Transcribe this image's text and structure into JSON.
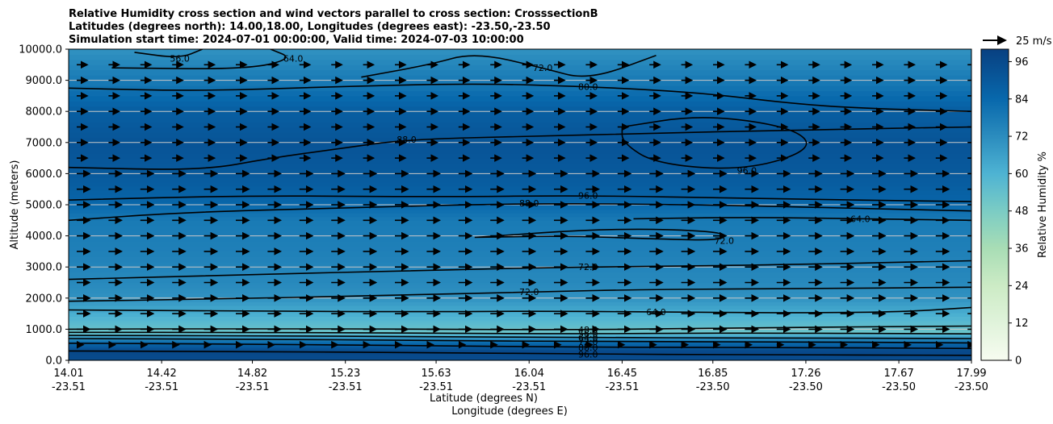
{
  "chart_data": {
    "type": "contourf",
    "title_lines": [
      "Relative Humidity cross section and wind vectors parallel to cross section: CrosssectionB",
      "Latitudes (degrees north): 14.00,18.00, Longitudes (degrees east): -23.50,-23.50",
      "Simulation start time: 2024-07-01 00:00:00, Valid time: 2024-07-03 10:00:00"
    ],
    "xlabel_line1": "Latitude (degrees N)",
    "xlabel_line2": "Longitude (degrees E)",
    "ylabel": "Altitude (meters)",
    "x_ticks": [
      {
        "lat": "14.01",
        "lon": "-23.51",
        "v": 14.01
      },
      {
        "lat": "14.42",
        "lon": "-23.51",
        "v": 14.42
      },
      {
        "lat": "14.82",
        "lon": "-23.51",
        "v": 14.82
      },
      {
        "lat": "15.23",
        "lon": "-23.51",
        "v": 15.23
      },
      {
        "lat": "15.63",
        "lon": "-23.51",
        "v": 15.63
      },
      {
        "lat": "16.04",
        "lon": "-23.51",
        "v": 16.04
      },
      {
        "lat": "16.45",
        "lon": "-23.51",
        "v": 16.45
      },
      {
        "lat": "16.85",
        "lon": "-23.50",
        "v": 16.85
      },
      {
        "lat": "17.26",
        "lon": "-23.50",
        "v": 17.26
      },
      {
        "lat": "17.67",
        "lon": "-23.50",
        "v": 17.67
      },
      {
        "lat": "17.99",
        "lon": "-23.50",
        "v": 17.99
      }
    ],
    "xlim": [
      14.01,
      17.99
    ],
    "y_ticks": [
      "0.0",
      "1000.0",
      "2000.0",
      "3000.0",
      "4000.0",
      "5000.0",
      "6000.0",
      "7000.0",
      "8000.0",
      "9000.0",
      "10000.0"
    ],
    "ylim": [
      0,
      10000
    ],
    "grid": "horizontal",
    "colorbar": {
      "label": "Relative Humidity %",
      "ticks": [
        "0",
        "12",
        "24",
        "36",
        "48",
        "60",
        "72",
        "84",
        "96"
      ],
      "range": [
        0,
        100
      ],
      "levels": 25
    },
    "quiver_key": "25 m/s",
    "rh_profile": [
      {
        "z": 0,
        "rh": 95
      },
      {
        "z": 300,
        "rh": 97
      },
      {
        "z": 600,
        "rh": 82
      },
      {
        "z": 900,
        "rh": 52
      },
      {
        "z": 1300,
        "rh": 58
      },
      {
        "z": 2000,
        "rh": 70
      },
      {
        "z": 2500,
        "rh": 73
      },
      {
        "z": 3500,
        "rh": 76
      },
      {
        "z": 4500,
        "rh": 78
      },
      {
        "z": 5200,
        "rh": 86
      },
      {
        "z": 6000,
        "rh": 90
      },
      {
        "z": 7000,
        "rh": 92
      },
      {
        "z": 8000,
        "rh": 88
      },
      {
        "z": 9000,
        "rh": 78
      },
      {
        "z": 10000,
        "rh": 70
      }
    ],
    "contours": [
      {
        "level": "64.0",
        "points": [
          [
            14.01,
            1620
          ],
          [
            14.8,
            1580
          ],
          [
            15.6,
            1560
          ],
          [
            16.04,
            1580
          ],
          [
            16.6,
            1560
          ],
          [
            17.2,
            1520
          ],
          [
            17.7,
            1560
          ],
          [
            17.99,
            1700
          ]
        ]
      },
      {
        "level": "72.0",
        "points": [
          [
            14.01,
            1900
          ],
          [
            14.6,
            1960
          ],
          [
            15.4,
            2080
          ],
          [
            16.04,
            2200
          ],
          [
            16.6,
            2280
          ],
          [
            17.2,
            2300
          ],
          [
            17.99,
            2350
          ]
        ]
      },
      {
        "level": "72.0",
        "points": [
          [
            14.01,
            2600
          ],
          [
            14.8,
            2750
          ],
          [
            15.6,
            2900
          ],
          [
            16.3,
            3000
          ],
          [
            17.0,
            3050
          ],
          [
            17.99,
            3200
          ]
        ]
      },
      {
        "level": "72.0",
        "points": [
          [
            15.8,
            3950
          ],
          [
            16.2,
            4000
          ],
          [
            16.6,
            3900
          ],
          [
            16.9,
            3850
          ],
          [
            16.9,
            4150
          ],
          [
            16.4,
            4250
          ],
          [
            15.8,
            3950
          ]
        ]
      },
      {
        "level": "64.0",
        "points": [
          [
            16.5,
            4550
          ],
          [
            17.0,
            4600
          ],
          [
            17.5,
            4550
          ],
          [
            17.99,
            4500
          ]
        ]
      },
      {
        "level": "88.0",
        "points": [
          [
            14.01,
            4500
          ],
          [
            14.5,
            4750
          ],
          [
            15.2,
            4900
          ],
          [
            16.04,
            5050
          ],
          [
            16.8,
            5000
          ],
          [
            17.4,
            4900
          ],
          [
            17.99,
            4800
          ]
        ]
      },
      {
        "level": "96.0",
        "points": [
          [
            14.01,
            5150
          ],
          [
            14.8,
            5300
          ],
          [
            15.6,
            5250
          ],
          [
            16.3,
            5300
          ],
          [
            17.0,
            5200
          ],
          [
            17.99,
            5100
          ]
        ]
      },
      {
        "level": "88.0",
        "points": [
          [
            14.01,
            6200
          ],
          [
            14.6,
            6100
          ],
          [
            14.9,
            6500
          ],
          [
            15.2,
            6800
          ],
          [
            15.5,
            7100
          ],
          [
            16.04,
            7200
          ],
          [
            16.6,
            7300
          ],
          [
            17.2,
            7400
          ],
          [
            17.99,
            7500
          ]
        ]
      },
      {
        "level": "96.0",
        "points": [
          [
            16.45,
            7500
          ],
          [
            16.8,
            7900
          ],
          [
            17.2,
            7500
          ],
          [
            17.3,
            6800
          ],
          [
            17.0,
            6100
          ],
          [
            16.6,
            6300
          ],
          [
            16.45,
            7000
          ],
          [
            16.45,
            7500
          ]
        ]
      },
      {
        "level": "80.0",
        "points": [
          [
            14.01,
            8750
          ],
          [
            14.6,
            8650
          ],
          [
            15.2,
            8800
          ],
          [
            15.8,
            8900
          ],
          [
            16.3,
            8800
          ],
          [
            16.8,
            8600
          ],
          [
            17.2,
            8250
          ],
          [
            17.5,
            8100
          ],
          [
            17.99,
            8000
          ]
        ]
      },
      {
        "level": "72.0",
        "points": [
          [
            15.3,
            9100
          ],
          [
            15.6,
            9500
          ],
          [
            15.8,
            9900
          ],
          [
            16.1,
            9400
          ],
          [
            16.3,
            9000
          ],
          [
            16.6,
            9800
          ]
        ]
      },
      {
        "level": "64.0",
        "points": [
          [
            14.2,
            9400
          ],
          [
            14.8,
            9350
          ],
          [
            15.0,
            9700
          ],
          [
            14.9,
            10000
          ]
        ]
      },
      {
        "level": "56.0",
        "points": [
          [
            14.3,
            9900
          ],
          [
            14.5,
            9700
          ],
          [
            14.6,
            10000
          ]
        ]
      },
      {
        "level": "48.0",
        "points": [
          [
            14.01,
            1000
          ],
          [
            14.8,
            1020
          ],
          [
            15.6,
            1000
          ],
          [
            16.3,
            980
          ],
          [
            17.0,
            1050
          ],
          [
            17.99,
            1100
          ]
        ]
      },
      {
        "level": "56.0",
        "points": [
          [
            14.01,
            900
          ],
          [
            14.8,
            900
          ],
          [
            15.6,
            870
          ],
          [
            16.3,
            850
          ],
          [
            17.0,
            880
          ],
          [
            17.99,
            850
          ]
        ]
      },
      {
        "level": "64.0",
        "points": [
          [
            14.01,
            800
          ],
          [
            14.8,
            790
          ],
          [
            15.6,
            760
          ],
          [
            16.3,
            730
          ],
          [
            17.0,
            720
          ],
          [
            17.99,
            700
          ]
        ]
      },
      {
        "level": "72.0",
        "points": [
          [
            14.01,
            700
          ],
          [
            14.8,
            680
          ],
          [
            15.6,
            640
          ],
          [
            16.3,
            600
          ],
          [
            17.0,
            600
          ],
          [
            17.99,
            560
          ]
        ]
      },
      {
        "level": "88.0",
        "points": [
          [
            14.01,
            550
          ],
          [
            14.8,
            520
          ],
          [
            15.6,
            470
          ],
          [
            16.3,
            420
          ],
          [
            17.0,
            420
          ],
          [
            17.99,
            380
          ]
        ]
      },
      {
        "level": "96.0",
        "points": [
          [
            14.01,
            300
          ],
          [
            14.8,
            280
          ],
          [
            15.6,
            250
          ],
          [
            16.3,
            200
          ],
          [
            17.0,
            180
          ],
          [
            17.99,
            160
          ]
        ]
      }
    ]
  }
}
